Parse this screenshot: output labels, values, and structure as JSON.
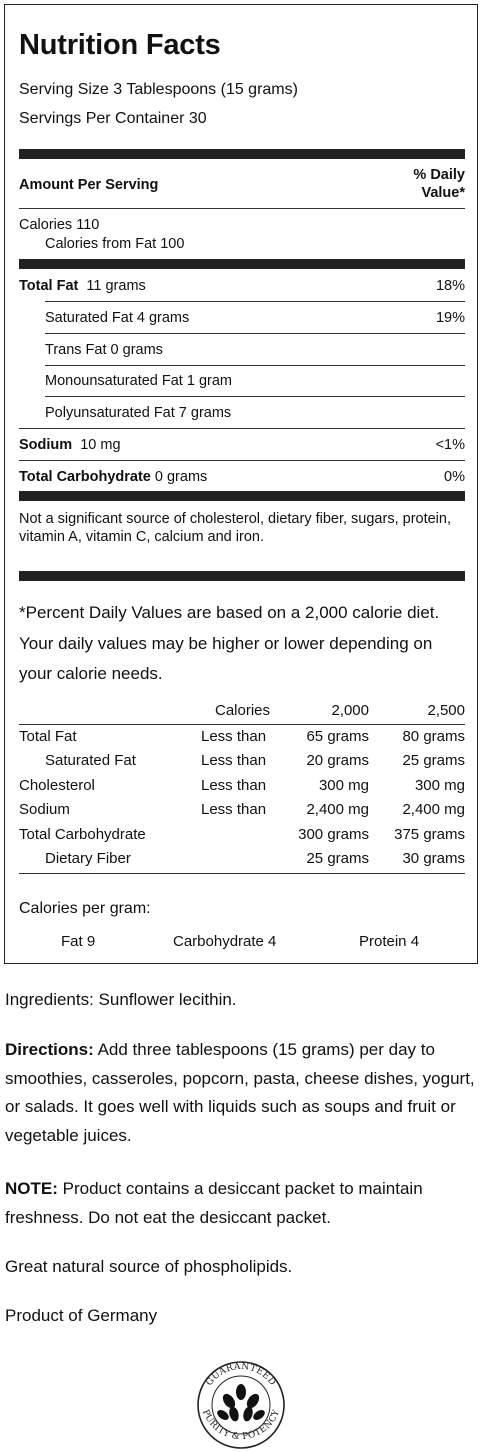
{
  "facts": {
    "title": "Nutrition Facts",
    "serving_size": "Serving Size 3 Tablespoons (15 grams)",
    "servings_per_container": "Servings Per Container 30",
    "amount_per_serving": "Amount Per Serving",
    "daily_value_header_1": "% Daily",
    "daily_value_header_2": "Value*",
    "calories": "Calories 110",
    "calories_from_fat": "Calories from Fat 100",
    "rows": [
      {
        "label": "Total Fat",
        "amount": "11 grams",
        "dv": "18%"
      },
      {
        "label": "Saturated Fat 4 grams",
        "amount": "",
        "dv": "19%"
      },
      {
        "label": "Trans Fat 0 grams",
        "amount": "",
        "dv": ""
      },
      {
        "label": "Monounsaturated Fat 1 gram",
        "amount": "",
        "dv": ""
      },
      {
        "label": "Polyunsaturated Fat 7 grams",
        "amount": "",
        "dv": ""
      },
      {
        "label": "Sodium",
        "amount": "10 mg",
        "dv": "<1%"
      },
      {
        "label": "Total Carbohydrate",
        "amount": "0 grams",
        "dv": "0%"
      }
    ],
    "not_significant": "Not a significant source of cholesterol, dietary fiber, sugars, protein, vitamin A, vitamin C, calcium and iron.",
    "percent_note": "*Percent Daily Values are based on a 2,000 calorie diet. Your daily values may be higher or lower depending on your calorie needs.",
    "dv_table": {
      "headers": [
        "Calories",
        "2,000",
        "2,500"
      ],
      "rows": [
        [
          "Total Fat",
          "Less than",
          "65 grams",
          "80 grams"
        ],
        [
          "Saturated Fat",
          "Less than",
          "20 grams",
          "25 grams"
        ],
        [
          "Cholesterol",
          "Less than",
          "300 mg",
          "300 mg"
        ],
        [
          "Sodium",
          "Less than",
          "2,400 mg",
          "2,400 mg"
        ],
        [
          "Total Carbohydrate",
          "",
          "300 grams",
          "375 grams"
        ],
        [
          "Dietary Fiber",
          "",
          "25 grams",
          "30 grams"
        ]
      ]
    },
    "calories_per_gram": "Calories per gram:",
    "cpg_fat": "Fat 9",
    "cpg_carb": "Carbohydrate 4",
    "cpg_protein": "Protein 4"
  },
  "info": {
    "ingredients": "Ingredients: Sunflower lecithin.",
    "directions_label": "Directions:",
    "directions": " Add three tablespoons (15 grams) per day to smoothies, casseroles, popcorn, pasta, cheese dishes, yogurt, or salads. It goes well with liquids such as soups and fruit or vegetable juices.",
    "note_label": "NOTE:",
    "note": " Product contains a desiccant packet to maintain freshness. Do not eat the desiccant packet.",
    "source": "Great natural source of phospholipids.",
    "origin": "Product of Germany"
  },
  "seal": {
    "top_text": "GUARANTEED",
    "bottom_text": "PURITY & POTENCY"
  }
}
